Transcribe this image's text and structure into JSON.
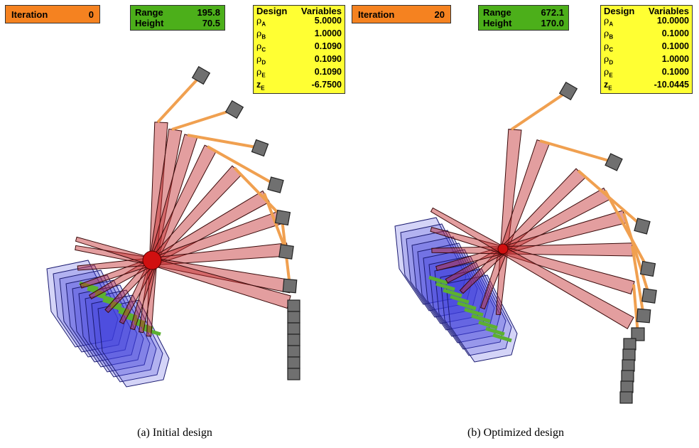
{
  "panels": [
    {
      "iteration_label": "Iteration",
      "iteration_value": "0",
      "range_label": "Range",
      "range_value": "195.8",
      "height_label": "Height",
      "height_value": "70.5",
      "dv_header_left": "Design",
      "dv_header_right": "Variables",
      "variables": [
        {
          "symbol": "ρ",
          "sub": "A",
          "value": "5.0000"
        },
        {
          "symbol": "ρ",
          "sub": "B",
          "value": "1.0000"
        },
        {
          "symbol": "ρ",
          "sub": "C",
          "value": "0.1090"
        },
        {
          "symbol": "ρ",
          "sub": "D",
          "value": "0.1090"
        },
        {
          "symbol": "ρ",
          "sub": "E",
          "value": "0.1090"
        },
        {
          "symbol": "z",
          "sub": "E",
          "value": "-6.7500"
        }
      ],
      "caption": "(a) Initial design"
    },
    {
      "iteration_label": "Iteration",
      "iteration_value": "20",
      "range_label": "Range",
      "range_value": "672.1",
      "height_label": "Height",
      "height_value": "170.0",
      "dv_header_left": "Design",
      "dv_header_right": "Variables",
      "variables": [
        {
          "symbol": "ρ",
          "sub": "A",
          "value": "10.0000"
        },
        {
          "symbol": "ρ",
          "sub": "B",
          "value": "0.1000"
        },
        {
          "symbol": "ρ",
          "sub": "C",
          "value": "0.1000"
        },
        {
          "symbol": "ρ",
          "sub": "D",
          "value": "1.0000"
        },
        {
          "symbol": "ρ",
          "sub": "E",
          "value": "0.1000"
        },
        {
          "symbol": "z",
          "sub": "E",
          "value": "-10.0445"
        }
      ],
      "caption": "(b) Optimized design"
    }
  ],
  "colors": {
    "iteration_box": "#f58220",
    "range_box": "#4caf1a",
    "variables_box": "#ffff33",
    "red_link": "#c0282a",
    "orange_link": "#f0a050",
    "blue_body": "#3a3adc",
    "green_link": "#5cb030",
    "gray_block": "#707070"
  }
}
